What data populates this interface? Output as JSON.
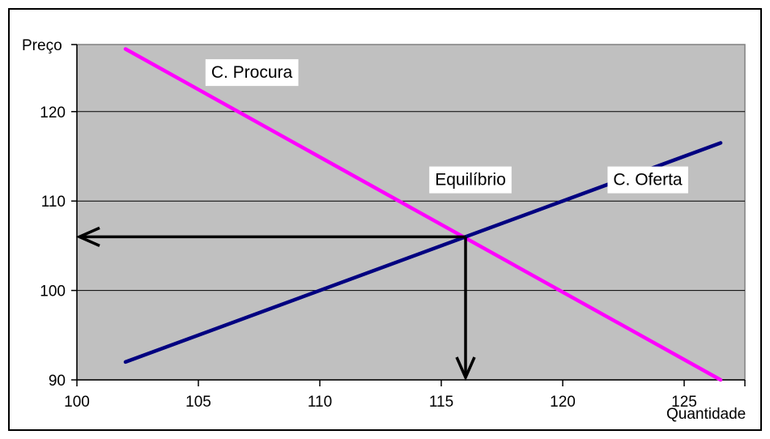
{
  "chart_data": {
    "type": "line",
    "xlabel": "Quantidade",
    "ylabel": "Preço",
    "xlim": [
      100,
      127.5
    ],
    "ylim": [
      90,
      127.5
    ],
    "x_ticks": [
      100,
      105,
      110,
      115,
      120,
      125
    ],
    "y_ticks": [
      90,
      100,
      110,
      120
    ],
    "grid": "horizontal",
    "plot_background": "#c0c0c0",
    "series": [
      {
        "name": "C. Procura",
        "color": "#ff00ff",
        "points": [
          [
            102,
            127
          ],
          [
            126.5,
            90
          ]
        ]
      },
      {
        "name": "C. Oferta",
        "color": "#000080",
        "points": [
          [
            102,
            92
          ],
          [
            126.5,
            116.5
          ]
        ]
      }
    ],
    "annotations": [
      {
        "text": "C. Procura",
        "x": 107.2,
        "y": 124.5
      },
      {
        "text": "Equilíbrio",
        "x": 116.2,
        "y": 112.5
      },
      {
        "text": "C. Oferta",
        "x": 123.5,
        "y": 112.5
      }
    ],
    "equilibrium": {
      "x": 116,
      "y": 106
    }
  }
}
